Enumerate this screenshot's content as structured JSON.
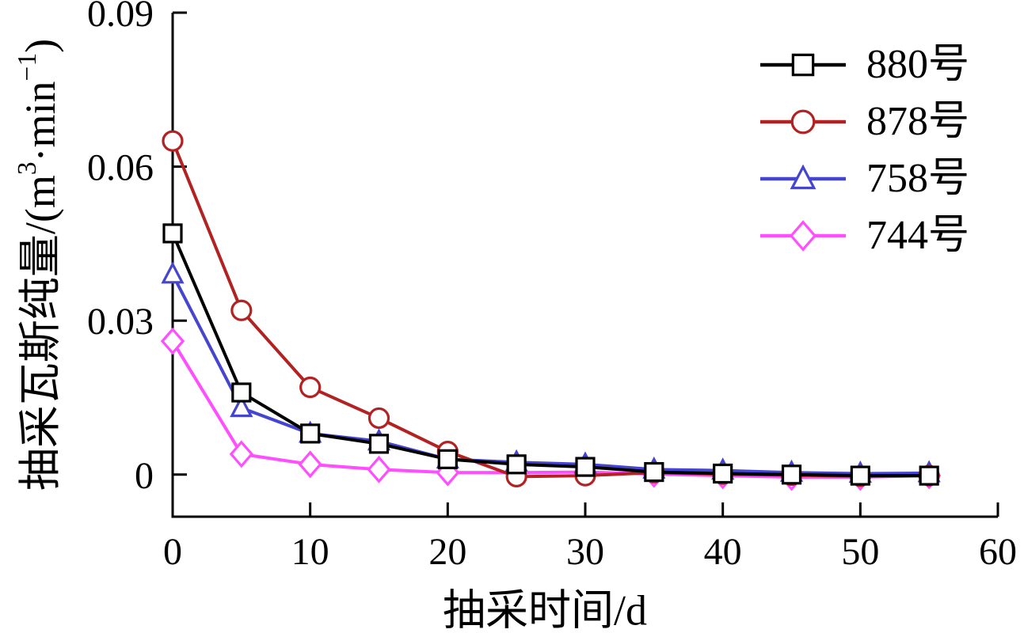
{
  "chart_data": {
    "type": "line",
    "title": "",
    "xlabel": "抽采时间/d",
    "ylabel": "抽采瓦斯纯量/(m³·min⁻¹)",
    "xlim": [
      0,
      60
    ],
    "ylim": [
      -0.0082,
      0.09
    ],
    "x_ticks": [
      0,
      10,
      20,
      30,
      40,
      50,
      60
    ],
    "y_ticks": [
      0,
      0.03,
      0.06,
      0.09
    ],
    "grid": false,
    "legend_position": "top-right",
    "x": [
      0,
      5,
      10,
      15,
      20,
      25,
      30,
      35,
      40,
      45,
      50,
      55
    ],
    "series": [
      {
        "name": "880号",
        "color": "#000000",
        "marker": "square",
        "values": [
          0.047,
          0.016,
          0.008,
          0.006,
          0.003,
          0.002,
          0.0015,
          0.0005,
          0.0002,
          0.0,
          -0.0002,
          -0.0002
        ]
      },
      {
        "name": "878号",
        "color": "#B22222",
        "marker": "circle",
        "values": [
          0.065,
          0.032,
          0.017,
          0.011,
          0.0045,
          -0.0004,
          -0.0002,
          0.0004,
          0.0001,
          -0.0001,
          -0.0003,
          -0.0002
        ]
      },
      {
        "name": "758号",
        "color": "#4545D0",
        "marker": "triangle",
        "values": [
          0.039,
          0.013,
          0.008,
          0.0065,
          0.003,
          0.0024,
          0.002,
          0.001,
          0.0008,
          0.0004,
          0.0002,
          0.0003
        ]
      },
      {
        "name": "744号",
        "color": "#FF4DFF",
        "marker": "diamond",
        "values": [
          0.026,
          0.004,
          0.002,
          0.001,
          0.0004,
          0.0004,
          0.0005,
          0.0001,
          -0.0002,
          -0.0005,
          -0.0005,
          -0.0002
        ]
      }
    ]
  },
  "labels": {
    "xlabel": "抽采时间/d",
    "ylabel_prefix": "抽采瓦斯纯量/(m",
    "ylabel_sup1": "3",
    "ylabel_mid": "·min",
    "ylabel_sup2": "−1",
    "ylabel_suffix": ")"
  },
  "colors": {
    "axis": "#000000",
    "background": "#FFFFFF",
    "text": "#000000"
  }
}
